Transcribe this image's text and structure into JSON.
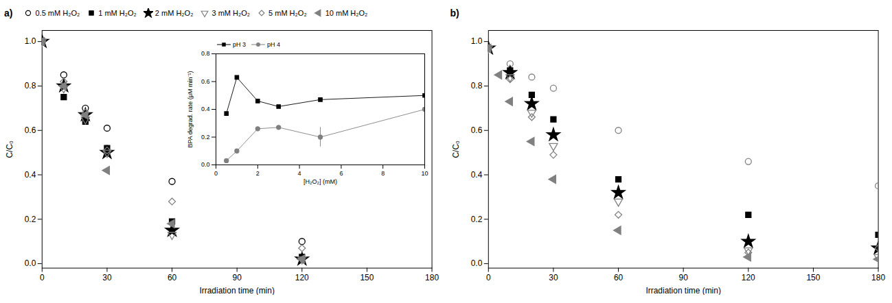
{
  "chart_data": [
    {
      "type": "scatter",
      "title": "a)",
      "xlabel": "Irradiation time (min)",
      "ylabel": "C/C₀",
      "xlim": [
        0,
        180
      ],
      "ylim": [
        -0.02,
        1.05
      ],
      "xticks": [
        0,
        30,
        60,
        90,
        120,
        150,
        180
      ],
      "yticks": [
        {
          "value": 0,
          "label": "0.0"
        },
        0.2,
        0.4,
        0.6,
        0.8,
        {
          "value": 1,
          "label": "1.0"
        }
      ],
      "legend": "top",
      "series": [
        {
          "name": "0.5 mM H₂O₂",
          "color": "black",
          "marker": "circle-open",
          "x": [
            0,
            10,
            20,
            30,
            60,
            120
          ],
          "values": [
            1.0,
            0.85,
            0.7,
            0.61,
            0.37,
            0.1
          ]
        },
        {
          "name": "1 mM H₂O₂",
          "color": "black",
          "marker": "square",
          "x": [
            0,
            10,
            20,
            30,
            60,
            120
          ],
          "values": [
            1.0,
            0.75,
            0.64,
            0.52,
            0.19,
            0.03
          ]
        },
        {
          "name": "2 mM H₂O₂",
          "color": "black",
          "marker": "star",
          "x": [
            0,
            10,
            20,
            30,
            60,
            120
          ],
          "values": [
            1.0,
            0.8,
            0.67,
            0.5,
            0.15,
            0.02
          ]
        },
        {
          "name": "3 mM H₂O₂",
          "color": "gray",
          "marker": "triangle-down-open",
          "x": [
            0,
            10,
            20,
            30,
            60,
            120
          ],
          "values": [
            1.0,
            0.79,
            0.65,
            0.5,
            0.13,
            0.02
          ]
        },
        {
          "name": "5 mM H₂O₂",
          "color": "gray",
          "marker": "diamond-open",
          "x": [
            0,
            10,
            20,
            30,
            60,
            120
          ],
          "values": [
            1.0,
            0.82,
            0.68,
            0.51,
            0.28,
            0.07
          ]
        },
        {
          "name": "10 mM H₂O₂",
          "color": "gray",
          "marker": "triangle-left",
          "x": [
            0,
            10,
            20,
            30,
            60,
            120
          ],
          "values": [
            1.0,
            0.8,
            0.67,
            0.42,
            0.18,
            0.02
          ]
        }
      ]
    },
    {
      "type": "line",
      "xlabel": "[H₂O₂] (mM)",
      "ylabel": "BPA degrad. rate (μM min⁻¹)",
      "x": [
        0.5,
        1,
        2,
        3,
        5,
        10
      ],
      "xlim": [
        0,
        10
      ],
      "ylim": [
        0.0,
        0.8
      ],
      "xticks": [
        0,
        2,
        4,
        6,
        8,
        10
      ],
      "yticks": [
        {
          "value": 0,
          "label": "0.0"
        },
        0.2,
        0.4,
        0.6,
        0.8
      ],
      "legend": "top",
      "series": [
        {
          "name": "pH 3",
          "color": "black",
          "marker": "square",
          "values": [
            0.37,
            0.63,
            0.46,
            0.42,
            0.47,
            0.5
          ]
        },
        {
          "name": "pH 4",
          "color": "gray",
          "marker": "circle",
          "values": [
            0.03,
            0.1,
            0.26,
            0.27,
            0.2,
            0.4
          ],
          "error": [
            0.0,
            0.0,
            0.0,
            0.0,
            0.07,
            0.0
          ]
        }
      ]
    },
    {
      "type": "scatter",
      "title": "b)",
      "xlabel": "Irradiation time (min)",
      "ylabel": "C/C₀",
      "xlim": [
        0,
        180
      ],
      "ylim": [
        -0.02,
        1.05
      ],
      "xticks": [
        0,
        30,
        60,
        90,
        120,
        150,
        180
      ],
      "yticks": [
        {
          "value": 0,
          "label": "0.0"
        },
        0.2,
        0.4,
        0.6,
        0.8,
        {
          "value": 1,
          "label": "1.0"
        }
      ],
      "series": [
        {
          "name": "0.5 mM H₂O₂",
          "color": "gray",
          "marker": "circle-open",
          "x": [
            0,
            10,
            20,
            30,
            60,
            120,
            180
          ],
          "values": [
            0.97,
            0.9,
            0.84,
            0.79,
            0.6,
            0.46,
            0.35
          ]
        },
        {
          "name": "1 mM H₂O₂",
          "color": "black",
          "marker": "square",
          "x": [
            0,
            10,
            20,
            30,
            60,
            120,
            180
          ],
          "values": [
            0.97,
            0.87,
            0.76,
            0.65,
            0.38,
            0.22,
            0.13
          ]
        },
        {
          "name": "2 mM H₂O₂",
          "color": "black",
          "marker": "star",
          "x": [
            0,
            10,
            20,
            30,
            60,
            120,
            180
          ],
          "values": [
            0.97,
            0.86,
            0.72,
            0.58,
            0.32,
            0.1,
            0.07
          ]
        },
        {
          "name": "3 mM H₂O₂",
          "color": "gray",
          "marker": "triangle-down-open",
          "x": [
            0,
            10,
            20,
            30,
            60,
            120,
            180
          ],
          "values": [
            0.97,
            0.84,
            0.68,
            0.53,
            0.28,
            0.06,
            0.03
          ]
        },
        {
          "name": "5 mM H₂O₂",
          "color": "gray",
          "marker": "diamond-open",
          "x": [
            0,
            10,
            20,
            30,
            60,
            120,
            180
          ],
          "values": [
            0.97,
            0.83,
            0.66,
            0.49,
            0.22,
            0.05,
            0.07
          ]
        },
        {
          "name": "10 mM H₂O₂",
          "color": "gray",
          "marker": "triangle-left",
          "x": [
            0,
            5,
            10,
            20,
            30,
            60,
            120,
            180
          ],
          "values": [
            0.97,
            0.85,
            0.73,
            0.55,
            0.38,
            0.15,
            0.03,
            0.02
          ]
        }
      ]
    }
  ]
}
